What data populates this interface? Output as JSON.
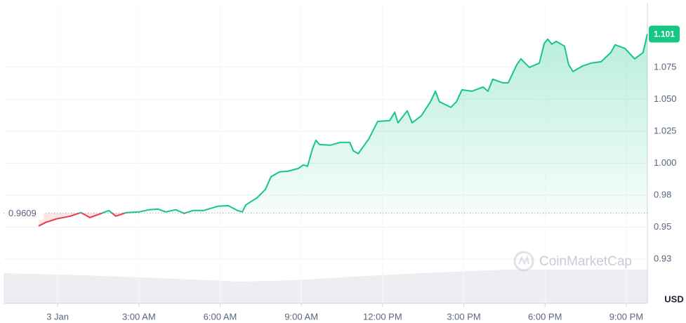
{
  "chart_data": {
    "type": "line",
    "baseline": 0.9609,
    "y_axis_label": "USD",
    "watermark": "CoinMarketCap",
    "up_color": "#16c784",
    "down_color": "#ea3943",
    "grid": true,
    "xlim": [
      -2,
      21.78
    ],
    "xticks": [
      {
        "value": 0,
        "label": "3 Jan"
      },
      {
        "value": 3,
        "label": "3:00 AM"
      },
      {
        "value": 6,
        "label": "6:00 AM"
      },
      {
        "value": 9,
        "label": "9:00 AM"
      },
      {
        "value": 12,
        "label": "12:00 PM"
      },
      {
        "value": 15,
        "label": "3:00 PM"
      },
      {
        "value": 18,
        "label": "6:00 PM"
      },
      {
        "value": 21,
        "label": "9:00 PM"
      }
    ],
    "ylim": [
      0.8904,
      1.1249
    ],
    "yticks": [
      1.075,
      {
        "value": 1.05,
        "label": "1.050"
      },
      1.025,
      {
        "value": 1,
        "label": "1.000"
      },
      {
        "value": 0.975,
        "label": "0.98"
      },
      0.95,
      {
        "value": 0.925,
        "label": "0.93"
      }
    ],
    "series": [
      {
        "x": [
          -0.7,
          -0.44,
          -0.05,
          0.47,
          0.86,
          1.19,
          1.56,
          1.89,
          2.15,
          2.54,
          3.01,
          3.37,
          3.71,
          3.99,
          4.36,
          4.67,
          5.0,
          5.39,
          5.91,
          6.3,
          6.64,
          6.82,
          6.95,
          7.36,
          7.67,
          7.88,
          8.19,
          8.5,
          8.89,
          9.07,
          9.23,
          9.41,
          9.54,
          9.67,
          10.06,
          10.45,
          10.79,
          10.92,
          11.1,
          11.49,
          11.82,
          12.26,
          12.45,
          12.57,
          12.91,
          13.09,
          13.43,
          13.77,
          13.95,
          14.1,
          14.52,
          14.73,
          14.93,
          15.3,
          15.71,
          15.89,
          16.07,
          16.44,
          16.64,
          16.96,
          17.11,
          17.42,
          17.79,
          17.97,
          18.1,
          18.25,
          18.41,
          18.72,
          18.87,
          19.03,
          19.39,
          19.7,
          20.07,
          20.43,
          20.59,
          20.95,
          21.31,
          21.62,
          21.78
        ],
        "values": [
          0.9509,
          0.9537,
          0.9564,
          0.9586,
          0.9614,
          0.9575,
          0.9603,
          0.963,
          0.9586,
          0.9614,
          0.9619,
          0.9636,
          0.9641,
          0.9619,
          0.9636,
          0.9608,
          0.963,
          0.963,
          0.9663,
          0.9668,
          0.963,
          0.9619,
          0.9674,
          0.9729,
          0.9795,
          0.9894,
          0.9932,
          0.9937,
          0.9959,
          0.9987,
          0.9976,
          1.0113,
          1.0179,
          1.0146,
          1.0141,
          1.0163,
          1.0163,
          1.0097,
          1.0075,
          1.019,
          1.0327,
          1.0333,
          1.0399,
          1.0316,
          1.041,
          1.0316,
          1.0371,
          1.0481,
          1.0563,
          1.0481,
          1.0437,
          1.0481,
          1.0574,
          1.0563,
          1.0596,
          1.0563,
          1.0657,
          1.0629,
          1.0629,
          1.0772,
          1.0816,
          1.075,
          1.0783,
          1.0937,
          1.097,
          1.0931,
          1.0953,
          1.0915,
          1.0772,
          1.0717,
          1.0761,
          1.0783,
          1.0794,
          1.0865,
          1.0926,
          1.0898,
          1.0816,
          1.0865,
          1.101
        ]
      }
    ]
  }
}
